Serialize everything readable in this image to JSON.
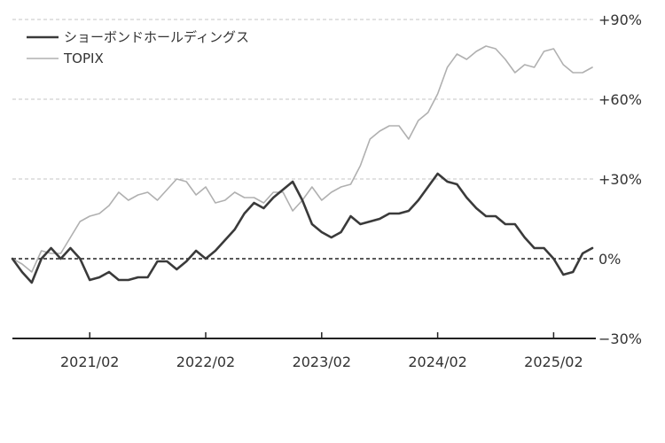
{
  "chart_data": {
    "type": "line",
    "title": "",
    "xlabel": "",
    "ylabel": "",
    "x_ticks": [
      "2021/02",
      "2022/02",
      "2023/02",
      "2024/02",
      "2025/02"
    ],
    "y_ticks": [
      "+90%",
      "+60%",
      "+30%",
      "0%",
      "−30%"
    ],
    "ylim": [
      -30,
      90
    ],
    "x_range": [
      "2020/06",
      "2025/05"
    ],
    "grid": true,
    "legend_position": "top-left",
    "series": [
      {
        "name": "ショーボンドホールディングス",
        "color": "#3a3a3a",
        "points": [
          [
            "2020/06",
            0
          ],
          [
            "2020/07",
            -5
          ],
          [
            "2020/08",
            -9
          ],
          [
            "2020/09",
            0
          ],
          [
            "2020/10",
            4
          ],
          [
            "2020/11",
            0
          ],
          [
            "2020/12",
            4
          ],
          [
            "2021/01",
            0
          ],
          [
            "2021/02",
            -8
          ],
          [
            "2021/03",
            -7
          ],
          [
            "2021/04",
            -5
          ],
          [
            "2021/05",
            -8
          ],
          [
            "2021/06",
            -8
          ],
          [
            "2021/07",
            -7
          ],
          [
            "2021/08",
            -7
          ],
          [
            "2021/09",
            -1
          ],
          [
            "2021/10",
            -1
          ],
          [
            "2021/11",
            -4
          ],
          [
            "2021/12",
            -1
          ],
          [
            "2022/01",
            3
          ],
          [
            "2022/02",
            0
          ],
          [
            "2022/03",
            3
          ],
          [
            "2022/04",
            7
          ],
          [
            "2022/05",
            11
          ],
          [
            "2022/06",
            17
          ],
          [
            "2022/07",
            21
          ],
          [
            "2022/08",
            19
          ],
          [
            "2022/09",
            23
          ],
          [
            "2022/10",
            26
          ],
          [
            "2022/11",
            29
          ],
          [
            "2022/12",
            22
          ],
          [
            "2023/01",
            13
          ],
          [
            "2023/02",
            10
          ],
          [
            "2023/03",
            8
          ],
          [
            "2023/04",
            10
          ],
          [
            "2023/05",
            16
          ],
          [
            "2023/06",
            13
          ],
          [
            "2023/07",
            14
          ],
          [
            "2023/08",
            15
          ],
          [
            "2023/09",
            17
          ],
          [
            "2023/10",
            17
          ],
          [
            "2023/11",
            18
          ],
          [
            "2023/12",
            22
          ],
          [
            "2024/01",
            27
          ],
          [
            "2024/02",
            32
          ],
          [
            "2024/03",
            29
          ],
          [
            "2024/04",
            28
          ],
          [
            "2024/05",
            23
          ],
          [
            "2024/06",
            19
          ],
          [
            "2024/07",
            16
          ],
          [
            "2024/08",
            16
          ],
          [
            "2024/09",
            13
          ],
          [
            "2024/10",
            13
          ],
          [
            "2024/11",
            8
          ],
          [
            "2024/12",
            4
          ],
          [
            "2025/01",
            4
          ],
          [
            "2025/02",
            0
          ],
          [
            "2025/03",
            -6
          ],
          [
            "2025/04",
            -5
          ],
          [
            "2025/05",
            2
          ],
          [
            "2025/06",
            4
          ]
        ]
      },
      {
        "name": "TOPIX",
        "color": "#b0b0b0",
        "points": [
          [
            "2020/06",
            0
          ],
          [
            "2020/07",
            -2
          ],
          [
            "2020/08",
            -5
          ],
          [
            "2020/09",
            3
          ],
          [
            "2020/10",
            2
          ],
          [
            "2020/11",
            2
          ],
          [
            "2020/12",
            8
          ],
          [
            "2021/01",
            14
          ],
          [
            "2021/02",
            16
          ],
          [
            "2021/03",
            17
          ],
          [
            "2021/04",
            20
          ],
          [
            "2021/05",
            25
          ],
          [
            "2021/06",
            22
          ],
          [
            "2021/07",
            24
          ],
          [
            "2021/08",
            25
          ],
          [
            "2021/09",
            22
          ],
          [
            "2021/10",
            26
          ],
          [
            "2021/11",
            30
          ],
          [
            "2021/12",
            29
          ],
          [
            "2022/01",
            24
          ],
          [
            "2022/02",
            27
          ],
          [
            "2022/03",
            21
          ],
          [
            "2022/04",
            22
          ],
          [
            "2022/05",
            25
          ],
          [
            "2022/06",
            23
          ],
          [
            "2022/07",
            23
          ],
          [
            "2022/08",
            21
          ],
          [
            "2022/09",
            25
          ],
          [
            "2022/10",
            25
          ],
          [
            "2022/11",
            18
          ],
          [
            "2022/12",
            22
          ],
          [
            "2023/01",
            27
          ],
          [
            "2023/02",
            22
          ],
          [
            "2023/03",
            25
          ],
          [
            "2023/04",
            27
          ],
          [
            "2023/05",
            28
          ],
          [
            "2023/06",
            35
          ],
          [
            "2023/07",
            45
          ],
          [
            "2023/08",
            48
          ],
          [
            "2023/09",
            50
          ],
          [
            "2023/10",
            50
          ],
          [
            "2023/11",
            45
          ],
          [
            "2023/12",
            52
          ],
          [
            "2024/01",
            55
          ],
          [
            "2024/02",
            62
          ],
          [
            "2024/03",
            72
          ],
          [
            "2024/04",
            77
          ],
          [
            "2024/05",
            75
          ],
          [
            "2024/06",
            78
          ],
          [
            "2024/07",
            80
          ],
          [
            "2024/08",
            79
          ],
          [
            "2024/09",
            75
          ],
          [
            "2024/10",
            70
          ],
          [
            "2024/11",
            73
          ],
          [
            "2024/12",
            72
          ],
          [
            "2025/01",
            78
          ],
          [
            "2025/02",
            79
          ],
          [
            "2025/03",
            73
          ],
          [
            "2025/04",
            70
          ],
          [
            "2025/05",
            70
          ],
          [
            "2025/06",
            72
          ]
        ]
      }
    ]
  }
}
